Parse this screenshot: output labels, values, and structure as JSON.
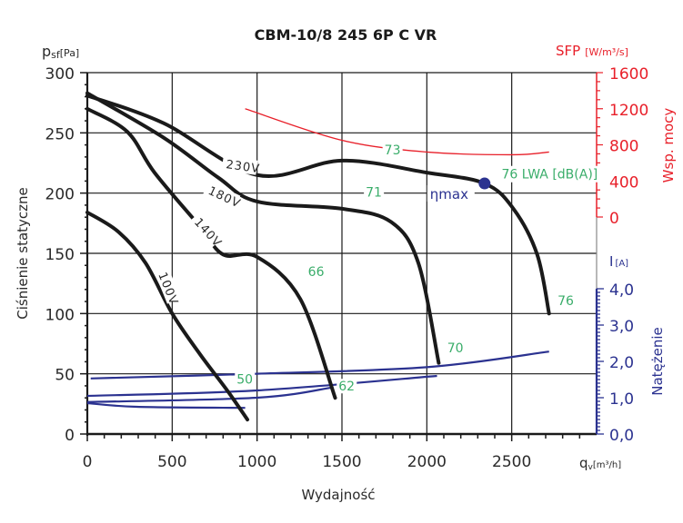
{
  "chart_data": {
    "type": "line",
    "title": "CBM-10/8 245 6P C VR",
    "xlabel": "Wydajność",
    "xunit_main": "q",
    "xunit_sub": "v",
    "xunit_bracket": "[m³/h]",
    "xlim": [
      0,
      3000
    ],
    "xticks": [
      0,
      500,
      1000,
      1500,
      2000,
      2500
    ],
    "ylabel": "Ciśnienie statyczne",
    "yunit_main": "p",
    "yunit_sub": "sf",
    "yunit_bracket": "[Pa]",
    "ylim": [
      0,
      300
    ],
    "yticks": [
      0,
      50,
      100,
      150,
      200,
      250,
      300
    ],
    "sfp_axis": {
      "label": "Wsp. mocy",
      "unit_main": "SFP",
      "unit_bracket": "[W/m³/s]",
      "lim": [
        0,
        1600
      ],
      "ticks": [
        "0",
        "400",
        "800",
        "1200",
        "1600"
      ],
      "color": "#e8202a"
    },
    "current_axis": {
      "label": "Natężenie",
      "unit_main": "I",
      "unit_bracket": "[A]",
      "lim": [
        0,
        4
      ],
      "ticks": [
        "0,0",
        "1,0",
        "2,0",
        "3,0",
        "4,0"
      ],
      "color": "#2b3290"
    },
    "grid": true,
    "pressure_series": [
      {
        "name": "230V",
        "label": "230V",
        "x": [
          0,
          450,
          1000,
          1500,
          2000,
          2340,
          2510,
          2650,
          2720
        ],
        "y": [
          281,
          258,
          215,
          227,
          217,
          208,
          187,
          149,
          100
        ]
      },
      {
        "name": "180V",
        "label": "180V",
        "x": [
          0,
          450,
          770,
          1000,
          1500,
          1790,
          1950,
          2070
        ],
        "y": [
          283,
          246,
          213,
          193,
          187,
          176,
          142,
          59
        ]
      },
      {
        "name": "140V",
        "label": "140V",
        "x": [
          0,
          235,
          396,
          665,
          800,
          1000,
          1255,
          1460
        ],
        "y": [
          270,
          251,
          217,
          172,
          149,
          147,
          112,
          30
        ]
      },
      {
        "name": "100V",
        "label": "100V",
        "x": [
          0,
          182,
          343,
          500,
          665,
          825,
          943
        ],
        "y": [
          184,
          168,
          142,
          100,
          66,
          36,
          12
        ]
      }
    ],
    "sfp_series": {
      "name": "SFP",
      "x": [
        930,
        1500,
        2000,
        2500,
        2720
      ],
      "y": [
        1200,
        850,
        720,
        690,
        720
      ]
    },
    "current_series": [
      {
        "name": "I 230V",
        "x": [
          20,
          1000,
          2000,
          2720
        ],
        "y": [
          1.53,
          1.66,
          1.84,
          2.27
        ]
      },
      {
        "name": "I 180V",
        "x": [
          0,
          1000,
          2060
        ],
        "y": [
          1.05,
          1.2,
          1.6
        ]
      },
      {
        "name": "I 140V",
        "x": [
          0,
          1000,
          1440
        ],
        "y": [
          0.88,
          1.0,
          1.28
        ]
      },
      {
        "name": "I 100V",
        "x": [
          0,
          290,
          930
        ],
        "y": [
          0.85,
          0.75,
          0.72
        ]
      }
    ],
    "noise_labels": [
      {
        "text": "73",
        "x": 1750,
        "y": 232
      },
      {
        "text": "71",
        "x": 1640,
        "y": 197
      },
      {
        "text": "66",
        "x": 1300,
        "y": 131
      },
      {
        "text": "50",
        "x": 880,
        "y": 42
      },
      {
        "text": "62",
        "x": 1480,
        "y": 36
      },
      {
        "text": "70",
        "x": 2120,
        "y": 68
      },
      {
        "text": "76",
        "x": 2770,
        "y": 107
      }
    ],
    "lwa_annotation": {
      "value": "76",
      "label": "LWA [dB(A)]",
      "x": 2440,
      "y": 212
    },
    "eta_max": {
      "label": "ηmax",
      "x": 2340,
      "y": 208
    }
  }
}
